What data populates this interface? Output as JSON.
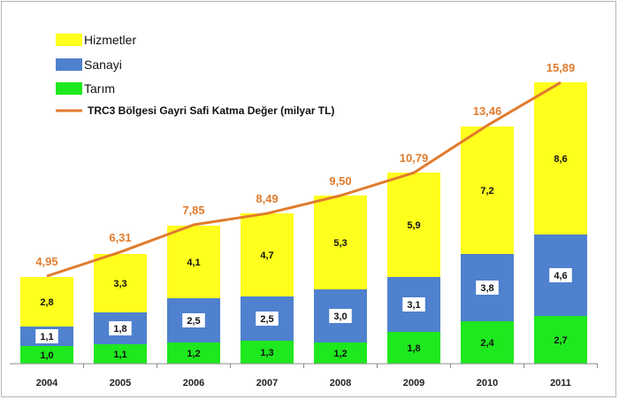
{
  "chart_data": {
    "type": "bar",
    "stacked": true,
    "categories": [
      "2004",
      "2005",
      "2006",
      "2007",
      "2008",
      "2009",
      "2010",
      "2011"
    ],
    "series": [
      {
        "name": "Tarım",
        "values": [
          1.0,
          1.1,
          1.2,
          1.3,
          1.2,
          1.8,
          2.4,
          2.7
        ],
        "labels": [
          "1,0",
          "1,1",
          "1,2",
          "1,3",
          "1,2",
          "1,8",
          "2,4",
          "2,7"
        ],
        "color": "#1ee81e"
      },
      {
        "name": "Sanayi",
        "values": [
          1.1,
          1.8,
          2.5,
          2.5,
          3.0,
          3.1,
          3.8,
          4.6
        ],
        "labels": [
          "1,1",
          "1,8",
          "2,5",
          "2,5",
          "3,0",
          "3,1",
          "3,8",
          "4,6"
        ],
        "color": "#4f81cf"
      },
      {
        "name": "Hizmetler",
        "values": [
          2.8,
          3.3,
          4.1,
          4.7,
          5.3,
          5.9,
          7.2,
          8.6
        ],
        "labels": [
          "2,8",
          "3,3",
          "4,1",
          "4,7",
          "5,3",
          "5,9",
          "7,2",
          "8,6"
        ],
        "color": "#ffff1e"
      }
    ],
    "line_series": {
      "name": "TRC3 Bölgesi Gayri Safi Katma Değer (milyar TL)",
      "values": [
        4.95,
        6.31,
        7.85,
        8.49,
        9.5,
        10.79,
        13.46,
        15.89
      ],
      "labels": [
        "4,95",
        "6,31",
        "7,85",
        "8,49",
        "9,50",
        "10,79",
        "13,46",
        "15,89"
      ],
      "color": "#e07b2d"
    },
    "ylim": [
      0,
      19.5
    ],
    "grid": false,
    "legend_position": "top-left"
  }
}
